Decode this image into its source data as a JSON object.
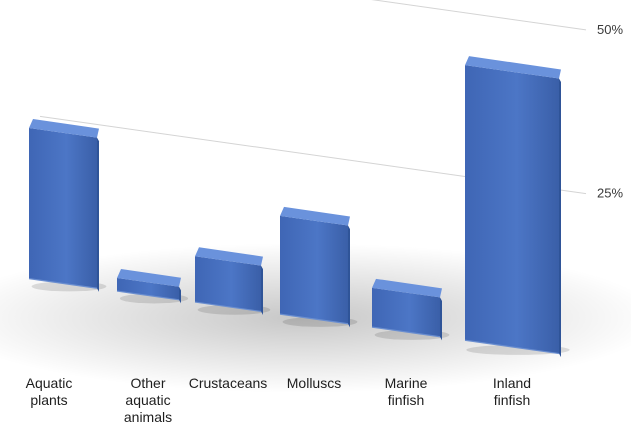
{
  "chart_data": {
    "type": "bar",
    "title": "",
    "xlabel": "",
    "ylabel": "",
    "ylim": [
      0,
      50
    ],
    "yticks": [
      {
        "value": 50,
        "label": "50%"
      },
      {
        "value": 25,
        "label": "25%"
      }
    ],
    "grid": true,
    "categories": [
      {
        "name": "Aquatic plants",
        "lines": [
          "Aquatic",
          "plants"
        ]
      },
      {
        "name": "Other aquatic animals",
        "lines": [
          "Other",
          "aquatic",
          "animals"
        ]
      },
      {
        "name": "Crustaceans",
        "lines": [
          "Crustaceans"
        ]
      },
      {
        "name": "Molluscs",
        "lines": [
          "Molluscs"
        ]
      },
      {
        "name": "Marine finfish",
        "lines": [
          "Marine",
          "finfish"
        ]
      },
      {
        "name": "Inland finfish",
        "lines": [
          "Inland",
          "finfish"
        ]
      }
    ],
    "values": [
      23,
      2,
      7,
      15,
      6,
      42
    ],
    "colors": {
      "bar": "#4a72c2",
      "bar_top": "#6a92dc",
      "bar_side": "#2f5498",
      "grid": "#d4d4d4"
    }
  }
}
